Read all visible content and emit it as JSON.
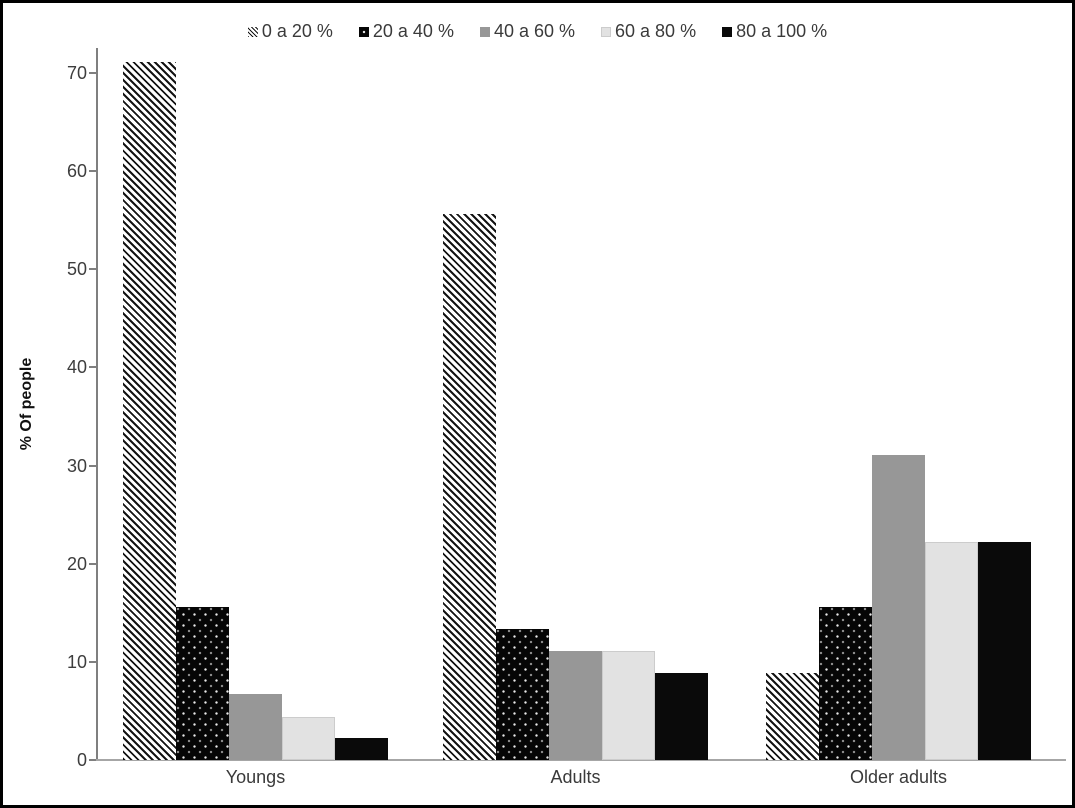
{
  "chart_data": {
    "type": "bar",
    "title": "",
    "xlabel": "",
    "ylabel": "% Of people",
    "ylim": [
      0,
      70
    ],
    "yticks": [
      0,
      10,
      20,
      30,
      40,
      50,
      60,
      70
    ],
    "grid": false,
    "legend_position": "top",
    "categories": [
      "Youngs",
      "Adults",
      "Older adults"
    ],
    "series": [
      {
        "name": "0 a 20 %",
        "pattern": "diagonal-hatch",
        "values": [
          71.1,
          55.6,
          8.9
        ]
      },
      {
        "name": "20 a 40 %",
        "pattern": "black-white-dots",
        "values": [
          15.6,
          13.3,
          15.6
        ]
      },
      {
        "name": "40 a 60 %",
        "pattern": "solid-gray",
        "values": [
          6.7,
          11.1,
          31.1
        ]
      },
      {
        "name": "60 a 80 %",
        "pattern": "solid-light-gray",
        "values": [
          4.4,
          11.1,
          22.2
        ]
      },
      {
        "name": "80 a 100 %",
        "pattern": "solid-black",
        "values": [
          2.2,
          8.9,
          22.2
        ]
      }
    ],
    "colors": {
      "hatch_stroke": "#141414",
      "dots_base": "#060606",
      "gray": "#979797",
      "light_gray": "#e2e2e2",
      "black": "#0a0a0a",
      "axis_line": "#7f7f7f",
      "baseline": "#a6a6a6",
      "text": "#3a3a3a"
    }
  }
}
